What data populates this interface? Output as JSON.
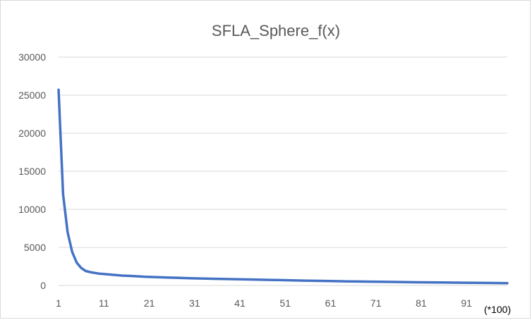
{
  "chart_data": {
    "type": "line",
    "title": "SFLA_Sphere_f(x)",
    "xlabel": "",
    "ylabel": "",
    "x_unit_note": "(*100)",
    "ylim": [
      0,
      30000
    ],
    "yticks": [
      0,
      5000,
      10000,
      15000,
      20000,
      25000,
      30000
    ],
    "xticks": [
      1,
      11,
      21,
      31,
      41,
      51,
      61,
      71,
      81,
      91
    ],
    "grid": true,
    "legend": "none",
    "series": [
      {
        "color": "#4472C4",
        "x": [
          1,
          2,
          3,
          4,
          5,
          6,
          7,
          8,
          9,
          10,
          11,
          13,
          15,
          17,
          20,
          25,
          30,
          35,
          40,
          45,
          50,
          55,
          60,
          65,
          70,
          75,
          80,
          85,
          90,
          95,
          100
        ],
        "values": [
          25700,
          12000,
          7000,
          4400,
          3000,
          2300,
          1900,
          1750,
          1650,
          1550,
          1500,
          1400,
          1300,
          1250,
          1150,
          1050,
          950,
          880,
          820,
          760,
          700,
          640,
          590,
          540,
          500,
          460,
          420,
          390,
          360,
          330,
          300
        ]
      }
    ]
  }
}
